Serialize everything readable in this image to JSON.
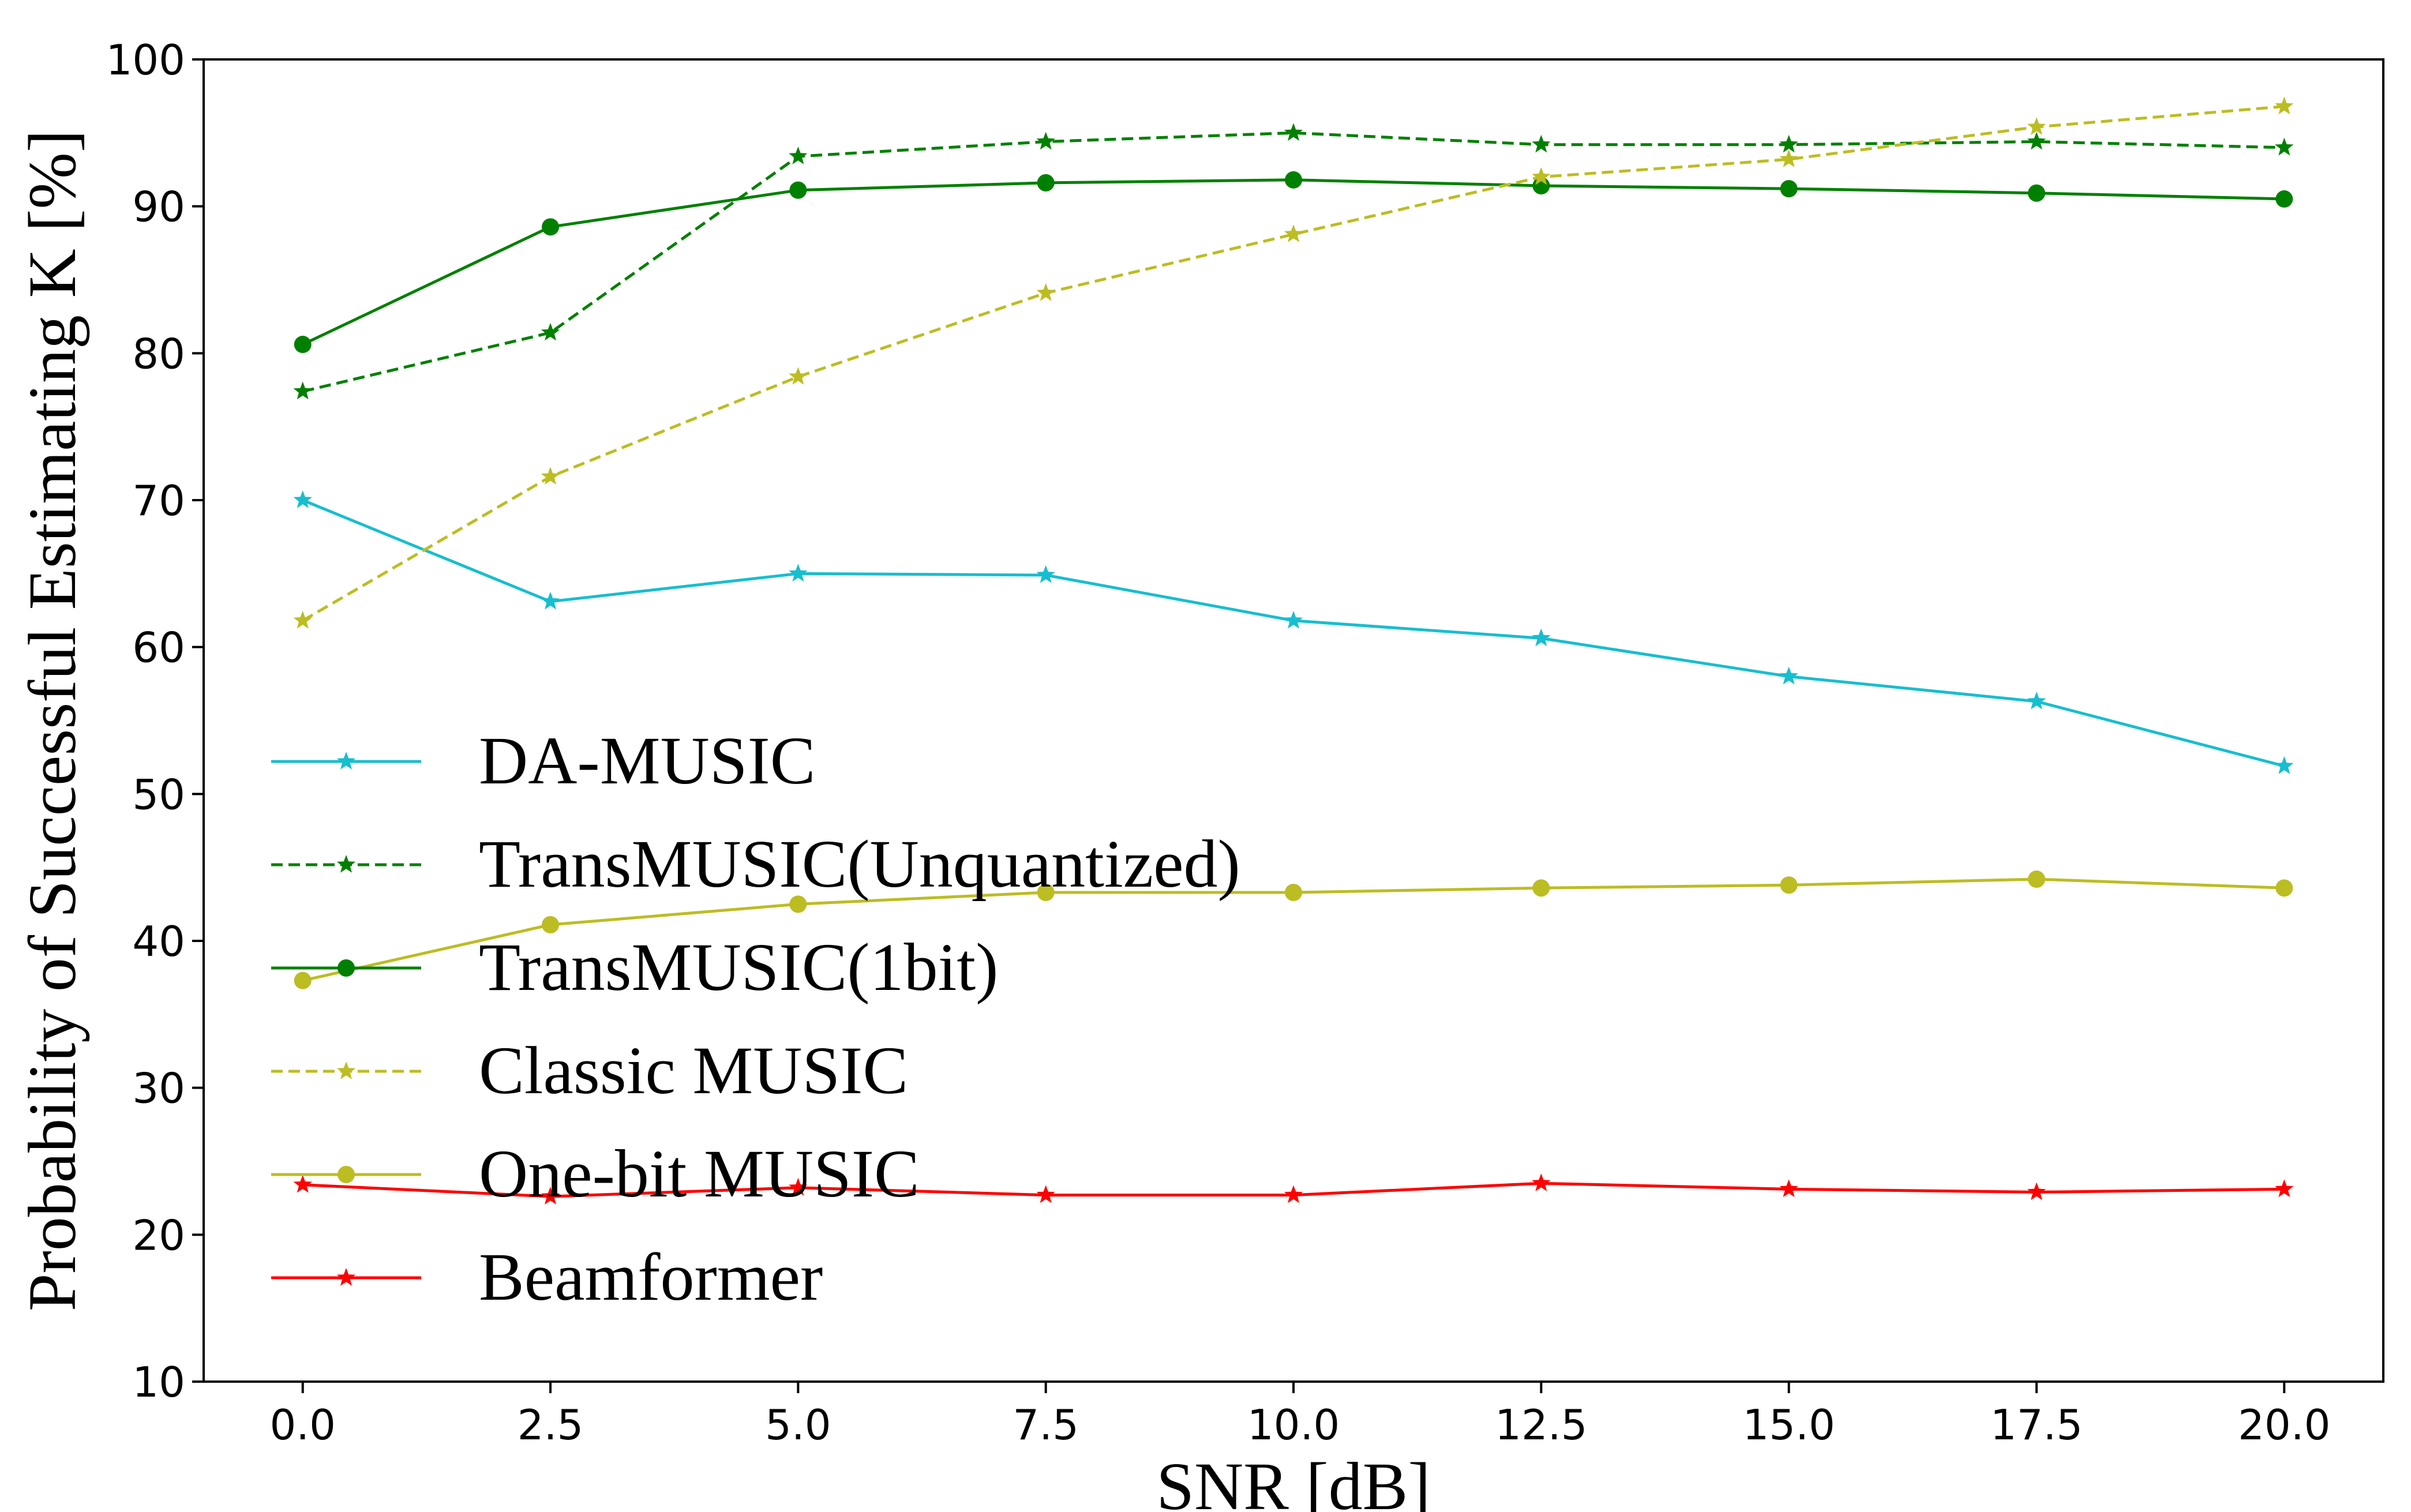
{
  "chart_data": {
    "type": "line",
    "title": "",
    "xlabel": "SNR [dB]",
    "ylabel": "Probability of Successful Estimating K [%]",
    "x": [
      0.0,
      2.5,
      5.0,
      7.5,
      10.0,
      12.5,
      15.0,
      17.5,
      20.0
    ],
    "xlim": [
      -1.0,
      21.0
    ],
    "ylim": [
      10,
      100
    ],
    "x_tick_labels": [
      "0.0",
      "2.5",
      "5.0",
      "7.5",
      "10.0",
      "12.5",
      "15.0",
      "17.5",
      "20.0"
    ],
    "y_ticks": [
      10,
      20,
      30,
      40,
      50,
      60,
      70,
      80,
      90,
      100
    ],
    "grid": false,
    "legend_position": "center-left",
    "series": [
      {
        "name": "DA-MUSIC",
        "color": "#17BECF",
        "linestyle": "solid",
        "marker": "star",
        "values": [
          70.0,
          63.1,
          65.0,
          64.9,
          61.8,
          60.6,
          58.0,
          56.3,
          51.9
        ]
      },
      {
        "name": "TransMUSIC(Unquantized)",
        "color": "#008000",
        "linestyle": "dashed",
        "marker": "star",
        "values": [
          77.4,
          81.4,
          93.4,
          94.4,
          95.0,
          94.2,
          94.2,
          94.4,
          94.0
        ]
      },
      {
        "name": "TransMUSIC(1bit)",
        "color": "#008000",
        "linestyle": "solid",
        "marker": "circle",
        "values": [
          80.6,
          88.6,
          91.1,
          91.6,
          91.8,
          91.4,
          91.2,
          90.9,
          90.5
        ]
      },
      {
        "name": "Classic MUSIC",
        "color": "#BCBD22",
        "linestyle": "dashed",
        "marker": "star",
        "values": [
          61.8,
          71.6,
          78.4,
          84.1,
          88.1,
          92.0,
          93.2,
          95.4,
          96.8
        ]
      },
      {
        "name": "One-bit MUSIC",
        "color": "#BCBD22",
        "linestyle": "solid",
        "marker": "circle",
        "values": [
          37.3,
          41.1,
          42.5,
          43.3,
          43.3,
          43.6,
          43.8,
          44.2,
          43.6
        ]
      },
      {
        "name": "Beamformer",
        "color": "#FF0000",
        "linestyle": "solid",
        "marker": "star",
        "values": [
          23.4,
          22.6,
          23.2,
          22.7,
          22.7,
          23.5,
          23.1,
          22.9,
          23.1
        ]
      }
    ]
  }
}
